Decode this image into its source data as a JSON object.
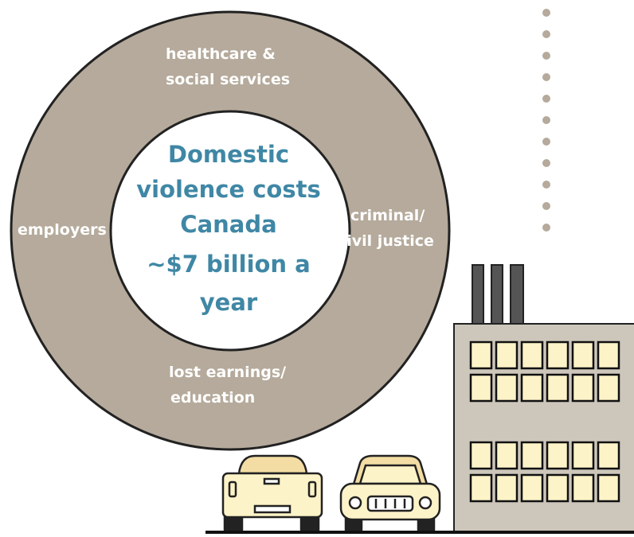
{
  "ring": {
    "top": [
      "healthcare &",
      "social services"
    ],
    "left": [
      "employers"
    ],
    "right": [
      "criminal/",
      "civil justice"
    ],
    "bottom": [
      "lost earnings/",
      "education"
    ]
  },
  "center": {
    "lines": [
      "Domestic",
      "violence costs",
      "Canada",
      "~$7 billion a",
      "year"
    ]
  }
}
